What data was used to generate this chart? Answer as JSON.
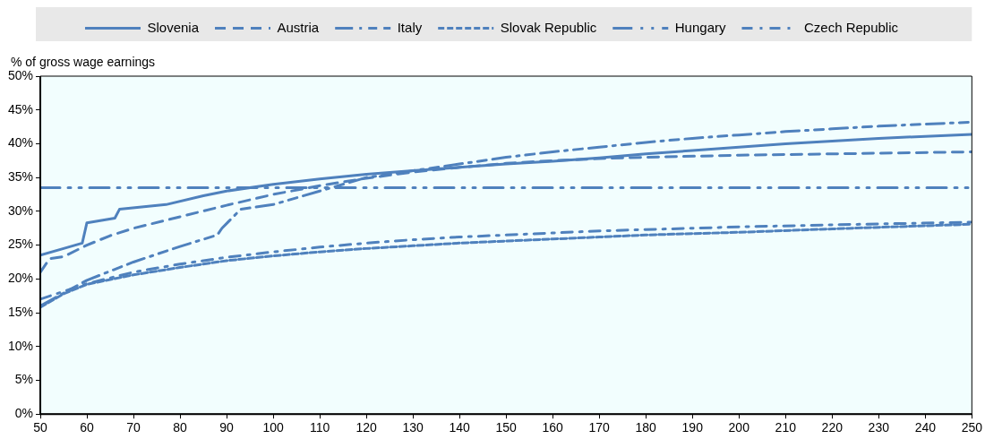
{
  "chart_data": {
    "type": "line",
    "ylabel": "% of gross wage earnings",
    "legend": "top",
    "grid": false,
    "marker": "none",
    "xlim": [
      50,
      250
    ],
    "xticks": [
      50,
      60,
      70,
      80,
      90,
      100,
      110,
      120,
      130,
      140,
      150,
      160,
      170,
      180,
      190,
      200,
      210,
      220,
      230,
      240,
      250
    ],
    "ylim": [
      0,
      50
    ],
    "yticks": [
      {
        "value": 0,
        "label": "0%"
      },
      {
        "value": 5,
        "label": "5%"
      },
      {
        "value": 10,
        "label": "10%"
      },
      {
        "value": 15,
        "label": "15%"
      },
      {
        "value": 20,
        "label": "20%"
      },
      {
        "value": 25,
        "label": "25%"
      },
      {
        "value": 30,
        "label": "30%"
      },
      {
        "value": 35,
        "label": "35%"
      },
      {
        "value": 40,
        "label": "40%"
      },
      {
        "value": 45,
        "label": "45%"
      },
      {
        "value": 50,
        "label": "50%"
      }
    ],
    "series": [
      {
        "name": "Slovenia",
        "color": "#4f81bd",
        "line_style": "solid",
        "x": [
          50,
          55,
          59,
          60,
          66,
          67,
          77,
          85,
          90,
          100,
          110,
          120,
          130,
          140,
          150,
          160,
          170,
          180,
          190,
          200,
          210,
          220,
          230,
          240,
          250
        ],
        "values": [
          23.5,
          24.5,
          25.3,
          28.3,
          29.0,
          30.3,
          31.0,
          32.3,
          33.0,
          34.0,
          34.8,
          35.5,
          36.0,
          36.5,
          37.0,
          37.4,
          37.9,
          38.5,
          39.0,
          39.5,
          40.0,
          40.4,
          40.8,
          41.1,
          41.4
        ]
      },
      {
        "name": "Austria",
        "color": "#4f81bd",
        "line_style": "dashed",
        "x": [
          50,
          52,
          55,
          60,
          65,
          70,
          80,
          90,
          100,
          110,
          120,
          130,
          140,
          150,
          160,
          170,
          180,
          200,
          220,
          250
        ],
        "values": [
          21.0,
          23.0,
          23.3,
          25.0,
          26.4,
          27.5,
          29.2,
          30.9,
          32.5,
          33.8,
          34.9,
          35.8,
          36.5,
          37.1,
          37.5,
          37.8,
          38.0,
          38.3,
          38.5,
          38.8
        ]
      },
      {
        "name": "Italy",
        "color": "#4f81bd",
        "line_style": "dashdot",
        "x": [
          50,
          60,
          70,
          80,
          88,
          89,
          93,
          100,
          110,
          120,
          130,
          140,
          150,
          160,
          170,
          180,
          190,
          200,
          210,
          220,
          230,
          240,
          250
        ],
        "values": [
          16.0,
          19.8,
          22.5,
          24.8,
          26.5,
          27.5,
          30.3,
          31.0,
          33.0,
          35.0,
          36.0,
          37.0,
          38.0,
          38.8,
          39.5,
          40.2,
          40.8,
          41.3,
          41.8,
          42.2,
          42.6,
          42.9,
          43.2
        ]
      },
      {
        "name": "Slovak Republic",
        "color": "#4f81bd",
        "line_style": "shortdash",
        "x": [
          50,
          55,
          60,
          70,
          80,
          90,
          100,
          110,
          120,
          130,
          140,
          150,
          160,
          170,
          180,
          200,
          220,
          250
        ],
        "values": [
          15.8,
          17.8,
          19.2,
          20.6,
          21.7,
          22.7,
          23.4,
          24.0,
          24.5,
          24.9,
          25.3,
          25.6,
          25.9,
          26.2,
          26.5,
          26.9,
          27.4,
          28.1
        ]
      },
      {
        "name": "Hungary",
        "color": "#4f81bd",
        "line_style": "dashdotdot",
        "x": [
          50,
          250
        ],
        "values": [
          33.5,
          33.5
        ]
      },
      {
        "name": "Czech Republic",
        "color": "#4f81bd",
        "line_style": "dashdotshort",
        "x": [
          50,
          60,
          70,
          80,
          90,
          100,
          110,
          120,
          130,
          140,
          150,
          160,
          170,
          180,
          190,
          200,
          220,
          250
        ],
        "values": [
          17.0,
          19.3,
          21.0,
          22.2,
          23.2,
          24.0,
          24.7,
          25.3,
          25.8,
          26.2,
          26.5,
          26.8,
          27.1,
          27.3,
          27.5,
          27.7,
          28.0,
          28.4
        ]
      }
    ]
  }
}
